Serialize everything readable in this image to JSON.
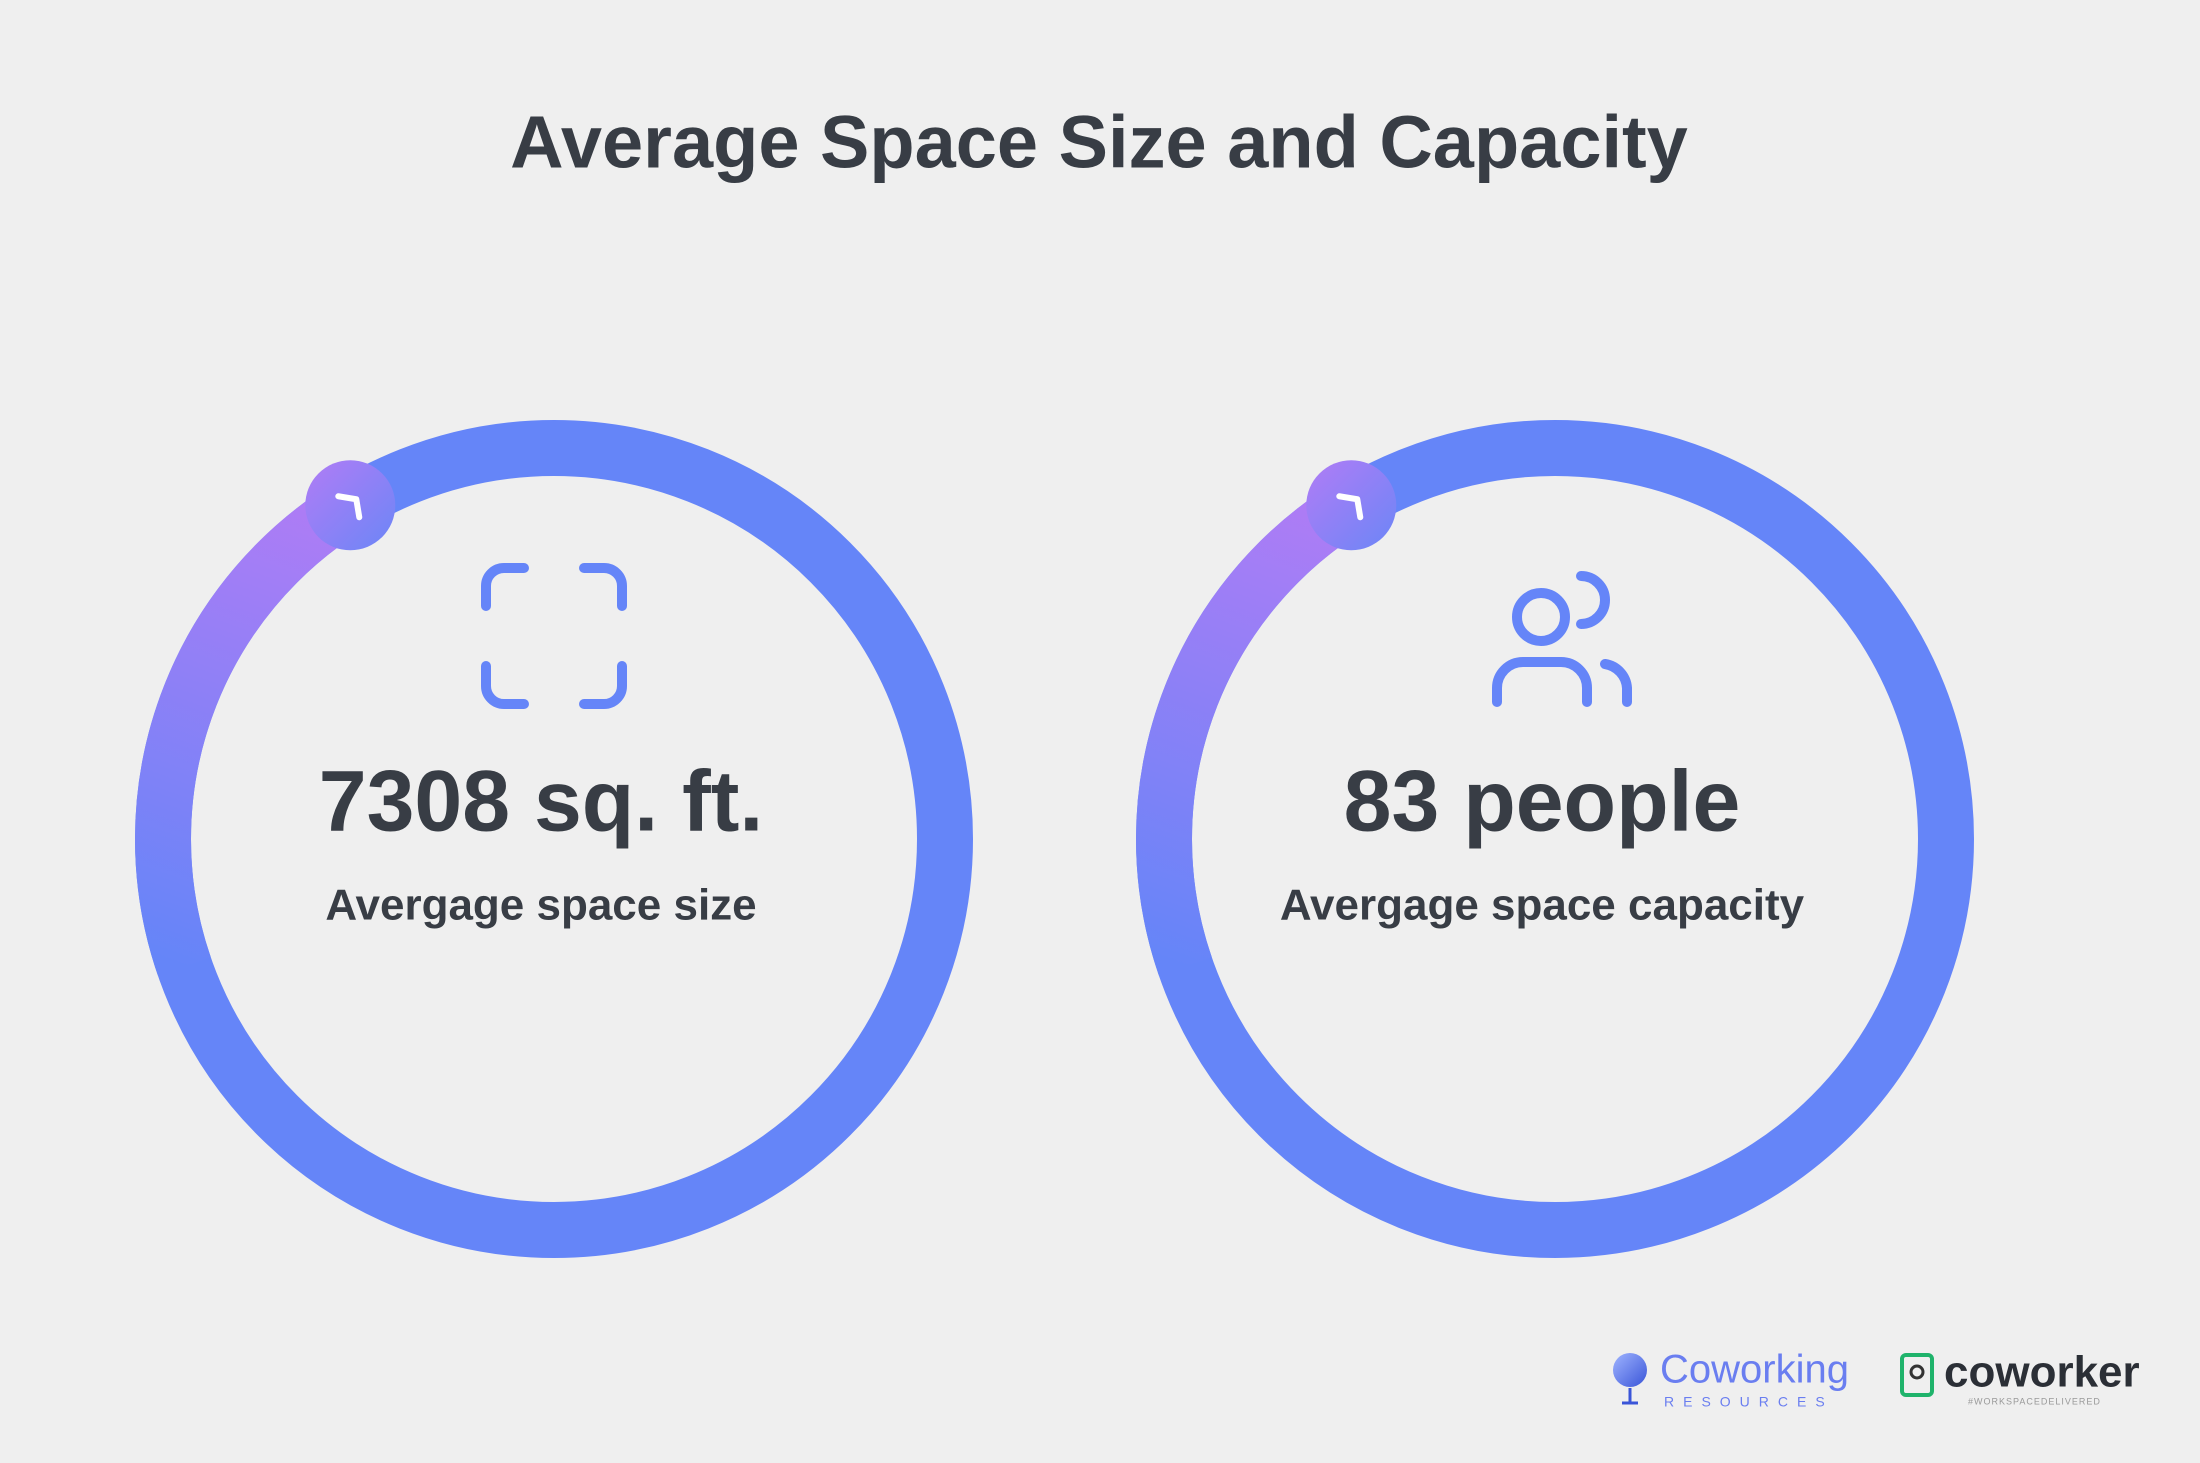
{
  "header": {
    "title": "Average Space Size and Capacity"
  },
  "stats": [
    {
      "value": "7308 sq. ft.",
      "label": "Avergage space size"
    },
    {
      "value": "83 people",
      "label": "Avergage space capacity"
    }
  ],
  "footer": {
    "logos": [
      {
        "name": "Coworking",
        "tagline": "RESOURCES"
      },
      {
        "name": "coworker",
        "tagline": "#WORKSPACEDELIVERED"
      }
    ]
  }
}
